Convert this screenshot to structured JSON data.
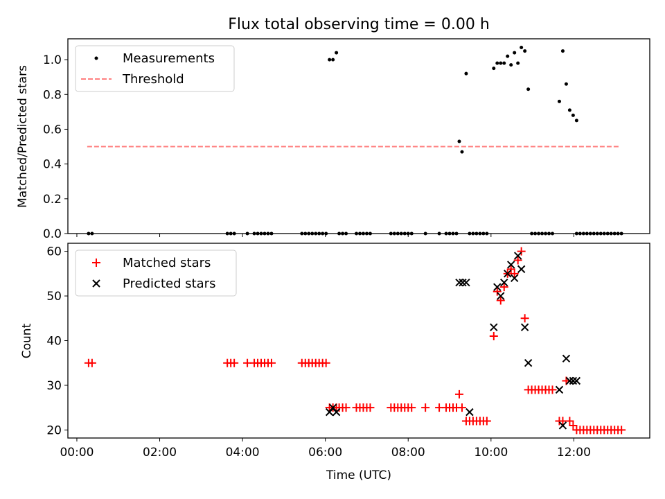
{
  "chart_data": [
    {
      "type": "scatter",
      "title": "Flux total observing time = 0.00 h",
      "xlabel": "",
      "ylabel": "Matched/Predicted stars",
      "xlim": [
        "23:47",
        "13:50"
      ],
      "ylim": [
        0,
        1.12
      ],
      "yticks": [
        0.0,
        0.2,
        0.4,
        0.6,
        0.8,
        1.0
      ],
      "ytick_labels": [
        "0.0",
        "0.2",
        "0.4",
        "0.6",
        "0.8",
        "1.0"
      ],
      "xticks": [
        "00:00",
        "02:00",
        "04:00",
        "06:00",
        "08:00",
        "10:00",
        "12:00"
      ],
      "legend": {
        "placement": "top-left",
        "entries": [
          "Measurements",
          "Threshold"
        ]
      },
      "threshold": {
        "name": "Threshold",
        "value": 0.5,
        "x_range": [
          "00:15",
          "13:05"
        ],
        "color": "#ff7f7f"
      },
      "series": [
        {
          "name": "Measurements",
          "color": "#000000",
          "points": [
            [
              "00:17",
              0
            ],
            [
              "00:22",
              0
            ],
            [
              "03:38",
              0
            ],
            [
              "03:43",
              0
            ],
            [
              "03:48",
              0
            ],
            [
              "04:07",
              0
            ],
            [
              "04:17",
              0
            ],
            [
              "04:22",
              0
            ],
            [
              "04:27",
              0
            ],
            [
              "04:32",
              0
            ],
            [
              "04:37",
              0
            ],
            [
              "04:42",
              0
            ],
            [
              "05:26",
              0
            ],
            [
              "05:31",
              0
            ],
            [
              "05:36",
              0
            ],
            [
              "05:41",
              0
            ],
            [
              "05:46",
              0
            ],
            [
              "05:51",
              0
            ],
            [
              "05:56",
              0
            ],
            [
              "06:01",
              0
            ],
            [
              "06:06",
              1.0
            ],
            [
              "06:11",
              1.0
            ],
            [
              "06:16",
              1.04
            ],
            [
              "06:20",
              0
            ],
            [
              "06:25",
              0
            ],
            [
              "06:30",
              0
            ],
            [
              "06:45",
              0
            ],
            [
              "06:50",
              0
            ],
            [
              "06:55",
              0
            ],
            [
              "07:00",
              0
            ],
            [
              "07:05",
              0
            ],
            [
              "07:35",
              0
            ],
            [
              "07:40",
              0
            ],
            [
              "07:45",
              0
            ],
            [
              "07:50",
              0
            ],
            [
              "07:55",
              0
            ],
            [
              "08:00",
              0
            ],
            [
              "08:05",
              0
            ],
            [
              "08:25",
              0
            ],
            [
              "08:45",
              0
            ],
            [
              "08:55",
              0
            ],
            [
              "09:00",
              0
            ],
            [
              "09:05",
              0
            ],
            [
              "09:10",
              0
            ],
            [
              "09:14",
              0.53
            ],
            [
              "09:18",
              0.47
            ],
            [
              "09:24",
              0.92
            ],
            [
              "09:29",
              0
            ],
            [
              "09:34",
              0
            ],
            [
              "09:39",
              0
            ],
            [
              "09:44",
              0
            ],
            [
              "09:49",
              0
            ],
            [
              "09:54",
              0
            ],
            [
              "10:04",
              0.95
            ],
            [
              "10:09",
              0.98
            ],
            [
              "10:14",
              0.98
            ],
            [
              "10:19",
              0.98
            ],
            [
              "10:24",
              1.02
            ],
            [
              "10:29",
              0.97
            ],
            [
              "10:34",
              1.04
            ],
            [
              "10:39",
              0.98
            ],
            [
              "10:44",
              1.07
            ],
            [
              "10:49",
              1.05
            ],
            [
              "10:54",
              0.83
            ],
            [
              "10:59",
              0
            ],
            [
              "11:04",
              0
            ],
            [
              "11:09",
              0
            ],
            [
              "11:14",
              0
            ],
            [
              "11:19",
              0
            ],
            [
              "11:24",
              0
            ],
            [
              "11:29",
              0
            ],
            [
              "11:39",
              0.76
            ],
            [
              "11:44",
              1.05
            ],
            [
              "11:49",
              0.86
            ],
            [
              "11:54",
              0.71
            ],
            [
              "11:59",
              0.68
            ],
            [
              "12:04",
              0.65
            ],
            [
              "12:04",
              0
            ],
            [
              "12:09",
              0
            ],
            [
              "12:14",
              0
            ],
            [
              "12:19",
              0
            ],
            [
              "12:24",
              0
            ],
            [
              "12:29",
              0
            ],
            [
              "12:34",
              0
            ],
            [
              "12:39",
              0
            ],
            [
              "12:44",
              0
            ],
            [
              "12:49",
              0
            ],
            [
              "12:54",
              0
            ],
            [
              "12:59",
              0
            ],
            [
              "13:04",
              0
            ],
            [
              "13:09",
              0
            ]
          ]
        }
      ]
    },
    {
      "type": "scatter",
      "title": "",
      "xlabel": "Time (UTC)",
      "ylabel": "Count",
      "xlim": [
        "23:47",
        "13:50"
      ],
      "ylim": [
        18.2,
        61.8
      ],
      "yticks": [
        20,
        30,
        40,
        50,
        60
      ],
      "ytick_labels": [
        "20",
        "30",
        "40",
        "50",
        "60"
      ],
      "xticks": [
        "00:00",
        "02:00",
        "04:00",
        "06:00",
        "08:00",
        "10:00",
        "12:00"
      ],
      "xtick_labels": [
        "00:00",
        "02:00",
        "04:00",
        "06:00",
        "08:00",
        "10:00",
        "12:00"
      ],
      "legend": {
        "placement": "top-left",
        "entries": [
          "Matched stars",
          "Predicted stars"
        ]
      },
      "series": [
        {
          "name": "Matched stars",
          "marker": "plus",
          "color": "#ff0000",
          "points": [
            [
              "00:17",
              35
            ],
            [
              "00:22",
              35
            ],
            [
              "03:38",
              35
            ],
            [
              "03:43",
              35
            ],
            [
              "03:48",
              35
            ],
            [
              "04:07",
              35
            ],
            [
              "04:17",
              35
            ],
            [
              "04:22",
              35
            ],
            [
              "04:27",
              35
            ],
            [
              "04:32",
              35
            ],
            [
              "04:37",
              35
            ],
            [
              "04:42",
              35
            ],
            [
              "05:26",
              35
            ],
            [
              "05:31",
              35
            ],
            [
              "05:36",
              35
            ],
            [
              "05:41",
              35
            ],
            [
              "05:46",
              35
            ],
            [
              "05:51",
              35
            ],
            [
              "05:56",
              35
            ],
            [
              "06:01",
              35
            ],
            [
              "06:06",
              25
            ],
            [
              "06:11",
              25
            ],
            [
              "06:16",
              25
            ],
            [
              "06:20",
              25
            ],
            [
              "06:25",
              25
            ],
            [
              "06:30",
              25
            ],
            [
              "06:45",
              25
            ],
            [
              "06:50",
              25
            ],
            [
              "06:55",
              25
            ],
            [
              "07:00",
              25
            ],
            [
              "07:05",
              25
            ],
            [
              "07:35",
              25
            ],
            [
              "07:40",
              25
            ],
            [
              "07:45",
              25
            ],
            [
              "07:50",
              25
            ],
            [
              "07:55",
              25
            ],
            [
              "08:00",
              25
            ],
            [
              "08:05",
              25
            ],
            [
              "08:25",
              25
            ],
            [
              "08:45",
              25
            ],
            [
              "08:55",
              25
            ],
            [
              "09:00",
              25
            ],
            [
              "09:05",
              25
            ],
            [
              "09:10",
              25
            ],
            [
              "09:14",
              28
            ],
            [
              "09:18",
              25
            ],
            [
              "09:24",
              22
            ],
            [
              "09:29",
              22
            ],
            [
              "09:34",
              22
            ],
            [
              "09:39",
              22
            ],
            [
              "09:44",
              22
            ],
            [
              "09:49",
              22
            ],
            [
              "09:54",
              22
            ],
            [
              "10:04",
              41
            ],
            [
              "10:09",
              51
            ],
            [
              "10:14",
              49
            ],
            [
              "10:19",
              52
            ],
            [
              "10:24",
              55
            ],
            [
              "10:29",
              56
            ],
            [
              "10:34",
              55
            ],
            [
              "10:39",
              58
            ],
            [
              "10:44",
              60
            ],
            [
              "10:49",
              45
            ],
            [
              "10:54",
              29
            ],
            [
              "10:59",
              29
            ],
            [
              "11:04",
              29
            ],
            [
              "11:09",
              29
            ],
            [
              "11:14",
              29
            ],
            [
              "11:19",
              29
            ],
            [
              "11:24",
              29
            ],
            [
              "11:29",
              29
            ],
            [
              "11:39",
              22
            ],
            [
              "11:44",
              22
            ],
            [
              "11:49",
              31
            ],
            [
              "11:54",
              22
            ],
            [
              "11:59",
              21
            ],
            [
              "12:04",
              20
            ],
            [
              "12:09",
              20
            ],
            [
              "12:14",
              20
            ],
            [
              "12:19",
              20
            ],
            [
              "12:24",
              20
            ],
            [
              "12:29",
              20
            ],
            [
              "12:34",
              20
            ],
            [
              "12:39",
              20
            ],
            [
              "12:44",
              20
            ],
            [
              "12:49",
              20
            ],
            [
              "12:54",
              20
            ],
            [
              "12:59",
              20
            ],
            [
              "13:04",
              20
            ],
            [
              "13:09",
              20
            ]
          ]
        },
        {
          "name": "Predicted stars",
          "marker": "x",
          "color": "#000000",
          "points": [
            [
              "06:06",
              24
            ],
            [
              "06:11",
              25
            ],
            [
              "06:16",
              24
            ],
            [
              "09:14",
              53
            ],
            [
              "09:19",
              53
            ],
            [
              "09:24",
              53
            ],
            [
              "09:29",
              24
            ],
            [
              "10:04",
              43
            ],
            [
              "10:09",
              52
            ],
            [
              "10:14",
              50
            ],
            [
              "10:19",
              53
            ],
            [
              "10:24",
              55
            ],
            [
              "10:29",
              57
            ],
            [
              "10:34",
              54
            ],
            [
              "10:39",
              59
            ],
            [
              "10:44",
              56
            ],
            [
              "10:49",
              43
            ],
            [
              "10:54",
              35
            ],
            [
              "11:39",
              29
            ],
            [
              "11:44",
              21
            ],
            [
              "11:49",
              36
            ],
            [
              "11:54",
              31
            ],
            [
              "11:59",
              31
            ],
            [
              "12:04",
              31
            ]
          ]
        }
      ]
    }
  ]
}
